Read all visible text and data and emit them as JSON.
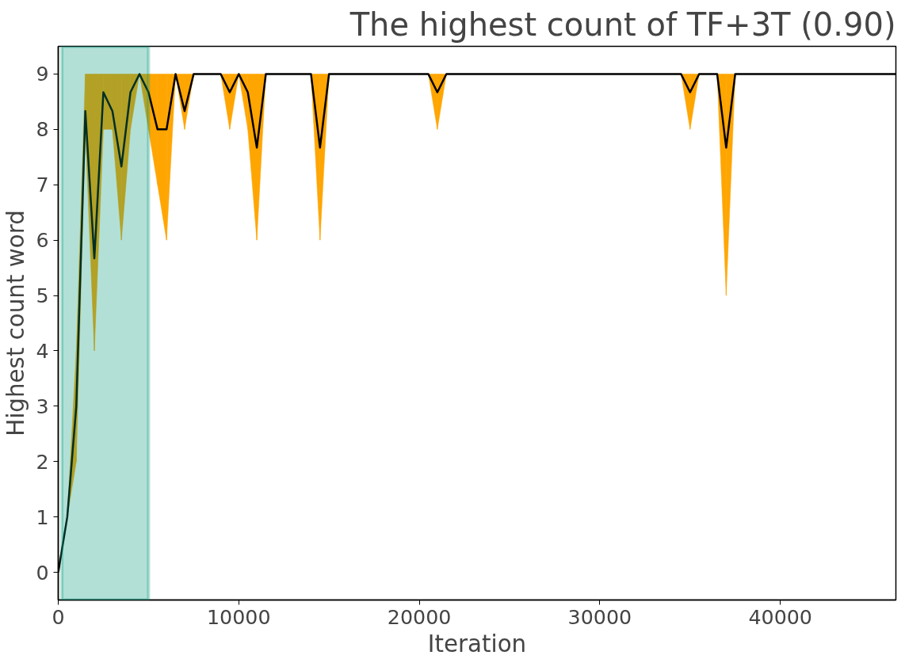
{
  "chart_data": {
    "type": "line",
    "title": "The highest count of TF+3T (0.90)",
    "xlabel": "Iteration",
    "ylabel": "Highest count word",
    "x": [
      0,
      500,
      1000,
      1500,
      2000,
      2500,
      3000,
      3500,
      4000,
      4500,
      5000,
      5500,
      6000,
      6500,
      7000,
      7500,
      9000,
      9500,
      10000,
      10500,
      11000,
      11500,
      14000,
      14500,
      15000,
      20500,
      21000,
      21500,
      34500,
      35000,
      35500,
      36500,
      37000,
      37500,
      46400
    ],
    "series": [
      {
        "color": "#000000",
        "colors": [
          "#ffa500",
          "#ffa500",
          "#ffa500",
          "#ffa500",
          "#ffa500",
          "#ffa500",
          "#ffa500",
          "#ffa500",
          "#ffa500",
          "#ffa500",
          "#ffa500",
          "#ffa500",
          "#ffa500",
          "#ffa500",
          "#ffa500",
          "#ffa500",
          "#ffa500",
          "#ffa500",
          "#ffa500",
          "#ffa500",
          "#ffa500",
          "#ffa500",
          "#ffa500",
          "#ffa500",
          "#ffa500",
          "#ffa500",
          "#ffa500",
          "#ffa500",
          "#ffa500",
          "#ffa500",
          "#ffa500",
          "#ffa500",
          "#ffa500",
          "#ffa500",
          "#ffa500"
        ],
        "lower": [
          null,
          1,
          2,
          8,
          4,
          8,
          8,
          6,
          8,
          9,
          8,
          7,
          6,
          9,
          8,
          9,
          9,
          8,
          9,
          8,
          6,
          9,
          9,
          6,
          9,
          9,
          8,
          9,
          9,
          8,
          9,
          9,
          5,
          9,
          null
        ],
        "upper": [
          null,
          1,
          4,
          9,
          9,
          9,
          9,
          9,
          9,
          9,
          9,
          9,
          9,
          9,
          9,
          9,
          9,
          9,
          9,
          9,
          9,
          9,
          9,
          9,
          9,
          9,
          9,
          9,
          9,
          9,
          9,
          9,
          9,
          9,
          null
        ],
        "values": [
          0,
          1.0,
          3.0,
          8.33,
          5.67,
          8.67,
          8.33,
          7.33,
          8.67,
          9,
          8.67,
          8.0,
          8.0,
          9,
          8.33,
          9,
          9,
          8.67,
          9,
          8.67,
          7.67,
          9,
          9,
          7.67,
          9,
          9,
          8.67,
          9,
          9,
          8.67,
          9,
          9,
          7.67,
          9,
          9
        ]
      }
    ],
    "bands": [
      {
        "axis": "x",
        "from": 200,
        "to": 5000,
        "color": "#00997a"
      }
    ],
    "xlim": [
      0,
      46400
    ],
    "ylim": [
      -0.5,
      9.5
    ],
    "xticks": [
      0,
      10000,
      20000,
      30000,
      40000
    ],
    "yticks": [
      0,
      1,
      2,
      3,
      4,
      5,
      6,
      7,
      8,
      9
    ],
    "grid": false,
    "marker": "none",
    "line_style": "solid"
  }
}
